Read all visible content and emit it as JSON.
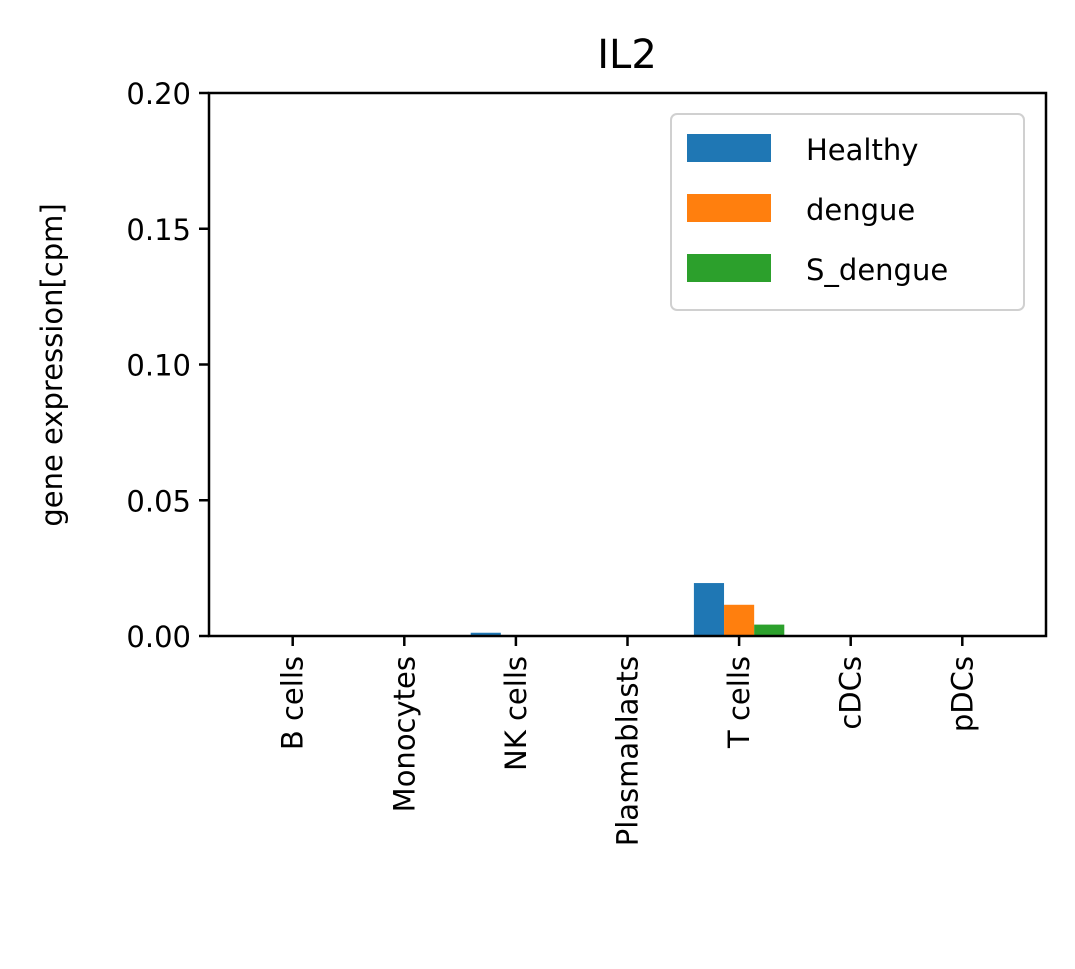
{
  "chart_data": {
    "type": "bar",
    "title": "IL2",
    "xlabel": "",
    "ylabel": "gene expression[cpm]",
    "ylim": [
      0,
      0.2
    ],
    "yticks": [
      "0.00",
      "0.05",
      "0.10",
      "0.15",
      "0.20"
    ],
    "categories": [
      "B cells",
      "Monocytes",
      "NK cells",
      "Plasmablasts",
      "T cells",
      "cDCs",
      "pDCs"
    ],
    "series": [
      {
        "name": "Healthy",
        "color": "#1f77b4",
        "values": [
          0,
          0,
          0.0012,
          0,
          0.0195,
          0,
          0
        ]
      },
      {
        "name": "dengue",
        "color": "#ff7f0e",
        "values": [
          0,
          0,
          0,
          0,
          0.0115,
          0,
          0
        ]
      },
      {
        "name": "S_dengue",
        "color": "#2ca02c",
        "values": [
          0,
          0,
          0,
          0,
          0.0042,
          0,
          0
        ]
      }
    ],
    "legend_position": "top-right",
    "grid": false
  }
}
